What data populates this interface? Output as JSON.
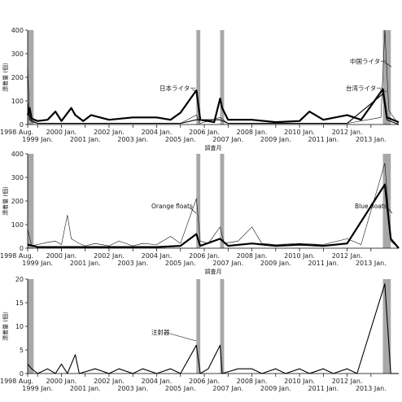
{
  "chart_data": [
    {
      "type": "line",
      "ylabel": "漂着量 (個)",
      "xlabel": "調査月",
      "ylim": [
        0,
        400
      ],
      "yticks": [
        0,
        100,
        200,
        300,
        400
      ],
      "x_start": "1998-08",
      "x_end": "2014-03",
      "xticks_top": [
        "1998 Aug.",
        "2000 Jan.",
        "2002 Jan.",
        "2004 Jan.",
        "2006 Jan.",
        "2008 Jan.",
        "2010 Jan.",
        "2012 Jan."
      ],
      "xticks_bottom": [
        "1999 Jan.",
        "2001 Jan.",
        "2003 Jan.",
        "2005 Jan.",
        "2007 Jan.",
        "2009 Jan.",
        "2011 Jan.",
        "2013 Jan."
      ],
      "shaded_periods": [
        [
          "1998-08",
          "1998-11"
        ],
        [
          "2005-09",
          "2005-11"
        ],
        [
          "2006-09",
          "2006-11"
        ],
        [
          "2013-07",
          "2013-11"
        ]
      ],
      "series": [
        {
          "name": "日本ライター",
          "style": "thick",
          "points": [
            [
              "1998-08",
              40
            ],
            [
              "1998-09",
              70
            ],
            [
              "1998-10",
              25
            ],
            [
              "1999-01",
              15
            ],
            [
              "1999-06",
              20
            ],
            [
              "1999-10",
              55
            ],
            [
              "2000-01",
              15
            ],
            [
              "2000-06",
              70
            ],
            [
              "2000-08",
              40
            ],
            [
              "2000-12",
              15
            ],
            [
              "2001-04",
              40
            ],
            [
              "2002-01",
              20
            ],
            [
              "2003-01",
              30
            ],
            [
              "2004-01",
              30
            ],
            [
              "2004-08",
              20
            ],
            [
              "2005-01",
              50
            ],
            [
              "2005-09",
              145
            ],
            [
              "2005-11",
              20
            ],
            [
              "2006-06",
              10
            ],
            [
              "2006-09",
              110
            ],
            [
              "2006-10",
              70
            ],
            [
              "2007-01",
              20
            ],
            [
              "2008-01",
              20
            ],
            [
              "2009-01",
              10
            ],
            [
              "2010-01",
              15
            ],
            [
              "2010-06",
              55
            ],
            [
              "2011-01",
              20
            ],
            [
              "2012-01",
              40
            ],
            [
              "2012-08",
              20
            ],
            [
              "2013-07",
              150
            ],
            [
              "2013-09",
              30
            ],
            [
              "2014-03",
              10
            ]
          ]
        },
        {
          "name": "中国ライター",
          "style": "thin",
          "points": [
            [
              "1998-08",
              240
            ],
            [
              "1998-09",
              40
            ],
            [
              "1998-10",
              10
            ],
            [
              "1999-01",
              5
            ],
            [
              "2000-01",
              5
            ],
            [
              "2001-01",
              5
            ],
            [
              "2002-01",
              5
            ],
            [
              "2003-01",
              5
            ],
            [
              "2004-01",
              5
            ],
            [
              "2005-01",
              5
            ],
            [
              "2005-09",
              40
            ],
            [
              "2005-11",
              5
            ],
            [
              "2006-09",
              30
            ],
            [
              "2007-01",
              5
            ],
            [
              "2008-01",
              5
            ],
            [
              "2009-01",
              5
            ],
            [
              "2010-01",
              5
            ],
            [
              "2011-01",
              5
            ],
            [
              "2012-01",
              5
            ],
            [
              "2013-06",
              30
            ],
            [
              "2013-08",
              400
            ],
            [
              "2013-10",
              60
            ],
            [
              "2014-03",
              0
            ]
          ]
        },
        {
          "name": "台湾ライター",
          "style": "medium",
          "points": [
            [
              "1998-08",
              90
            ],
            [
              "1998-09",
              20
            ],
            [
              "1999-01",
              5
            ],
            [
              "2000-01",
              5
            ],
            [
              "2001-01",
              5
            ],
            [
              "2002-01",
              5
            ],
            [
              "2003-01",
              5
            ],
            [
              "2004-01",
              5
            ],
            [
              "2005-01",
              5
            ],
            [
              "2005-09",
              20
            ],
            [
              "2006-09",
              20
            ],
            [
              "2007-01",
              5
            ],
            [
              "2008-01",
              5
            ],
            [
              "2009-01",
              5
            ],
            [
              "2010-01",
              5
            ],
            [
              "2011-01",
              5
            ],
            [
              "2012-01",
              5
            ],
            [
              "2013-07",
              130
            ],
            [
              "2013-09",
              20
            ],
            [
              "2014-03",
              0
            ]
          ]
        }
      ],
      "annotations": [
        "日本ライター",
        "中国ライター",
        "台湾ライター"
      ]
    },
    {
      "type": "line",
      "ylabel": "漂着量 (個)",
      "xlabel": "調査月",
      "ylim": [
        0,
        400
      ],
      "yticks": [
        0,
        100,
        200,
        300,
        400
      ],
      "x_start": "1998-08",
      "x_end": "2014-03",
      "xticks_top": [
        "1998 Aug.",
        "2000 Jan.",
        "2002 Jan.",
        "2004 Jan.",
        "2006 Jan.",
        "2008 Jan.",
        "2010 Jan.",
        "2012 Jan."
      ],
      "xticks_bottom": [
        "1999 Jan.",
        "2001 Jan.",
        "2003 Jan.",
        "2005 Jan.",
        "2007 Jan.",
        "2009 Jan.",
        "2011 Jan.",
        "2013 Jan."
      ],
      "shaded_periods": [
        [
          "1998-08",
          "1998-11"
        ],
        [
          "2005-09",
          "2005-11"
        ],
        [
          "2006-09",
          "2006-11"
        ],
        [
          "2013-07",
          "2013-11"
        ]
      ],
      "series": [
        {
          "name": "Orange floats",
          "style": "thin",
          "points": [
            [
              "1998-08",
              80
            ],
            [
              "1998-10",
              10
            ],
            [
              "1999-06",
              25
            ],
            [
              "1999-10",
              30
            ],
            [
              "2000-01",
              15
            ],
            [
              "2000-04",
              140
            ],
            [
              "2000-06",
              40
            ],
            [
              "2000-10",
              20
            ],
            [
              "2001-01",
              10
            ],
            [
              "2001-06",
              20
            ],
            [
              "2002-01",
              10
            ],
            [
              "2002-06",
              30
            ],
            [
              "2003-01",
              10
            ],
            [
              "2003-06",
              20
            ],
            [
              "2004-01",
              15
            ],
            [
              "2004-08",
              50
            ],
            [
              "2005-01",
              20
            ],
            [
              "2005-09",
              210
            ],
            [
              "2005-11",
              30
            ],
            [
              "2006-03",
              20
            ],
            [
              "2006-09",
              90
            ],
            [
              "2006-11",
              20
            ],
            [
              "2007-06",
              30
            ],
            [
              "2008-01",
              90
            ],
            [
              "2008-06",
              20
            ],
            [
              "2009-01",
              15
            ],
            [
              "2010-01",
              20
            ],
            [
              "2011-01",
              15
            ],
            [
              "2012-01",
              40
            ],
            [
              "2012-08",
              15
            ],
            [
              "2013-08",
              360
            ],
            [
              "2013-11",
              30
            ],
            [
              "2014-03",
              0
            ]
          ]
        },
        {
          "name": "Blue floats",
          "style": "thick",
          "points": [
            [
              "1998-08",
              15
            ],
            [
              "1999-01",
              5
            ],
            [
              "2000-01",
              5
            ],
            [
              "2001-01",
              5
            ],
            [
              "2002-01",
              5
            ],
            [
              "2003-01",
              5
            ],
            [
              "2004-01",
              5
            ],
            [
              "2005-01",
              10
            ],
            [
              "2005-09",
              60
            ],
            [
              "2005-11",
              10
            ],
            [
              "2006-09",
              40
            ],
            [
              "2007-01",
              10
            ],
            [
              "2008-01",
              20
            ],
            [
              "2009-01",
              10
            ],
            [
              "2010-01",
              15
            ],
            [
              "2011-01",
              10
            ],
            [
              "2012-01",
              20
            ],
            [
              "2013-08",
              270
            ],
            [
              "2013-11",
              40
            ],
            [
              "2014-03",
              0
            ]
          ]
        }
      ],
      "annotations": [
        "Orange floats",
        "Blue floats"
      ]
    },
    {
      "type": "line",
      "ylabel": "漂着量 (個)",
      "xlabel": "",
      "ylim": [
        0,
        20
      ],
      "yticks": [
        0,
        5,
        10,
        15,
        20
      ],
      "x_start": "1998-08",
      "x_end": "2014-03",
      "xticks_top": [
        "1998 Aug.",
        "2000 Jan.",
        "2002 Jan.",
        "2004 Jan.",
        "2006 Jan.",
        "2008 Jan.",
        "2010 Jan.",
        "2012 Jan."
      ],
      "xticks_bottom": [
        "1999 Jan.",
        "2001 Jan.",
        "2003 Jan.",
        "2005 Jan.",
        "2007 Jan.",
        "2009 Jan.",
        "2011 Jan.",
        "2013 Jan."
      ],
      "shaded_periods": [
        [
          "1998-08",
          "1998-11"
        ],
        [
          "2005-09",
          "2005-11"
        ],
        [
          "2006-09",
          "2006-11"
        ],
        [
          "2013-07",
          "2013-11"
        ]
      ],
      "series": [
        {
          "name": "注射器",
          "style": "medium",
          "points": [
            [
              "1998-08",
              2
            ],
            [
              "1998-10",
              1
            ],
            [
              "1999-01",
              0
            ],
            [
              "1999-06",
              1
            ],
            [
              "1999-10",
              0
            ],
            [
              "2000-01",
              2
            ],
            [
              "2000-04",
              0
            ],
            [
              "2000-08",
              4
            ],
            [
              "2000-10",
              0
            ],
            [
              "2001-06",
              1
            ],
            [
              "2002-01",
              0
            ],
            [
              "2002-06",
              1
            ],
            [
              "2003-01",
              0
            ],
            [
              "2003-06",
              1
            ],
            [
              "2004-01",
              0
            ],
            [
              "2004-08",
              1
            ],
            [
              "2005-01",
              0
            ],
            [
              "2005-09",
              6
            ],
            [
              "2005-11",
              0
            ],
            [
              "2006-03",
              1
            ],
            [
              "2006-09",
              6
            ],
            [
              "2006-10",
              0
            ],
            [
              "2007-06",
              1
            ],
            [
              "2008-01",
              1
            ],
            [
              "2008-06",
              0
            ],
            [
              "2009-01",
              1
            ],
            [
              "2009-06",
              0
            ],
            [
              "2010-01",
              1
            ],
            [
              "2010-06",
              0
            ],
            [
              "2011-01",
              1
            ],
            [
              "2011-06",
              0
            ],
            [
              "2012-01",
              1
            ],
            [
              "2012-06",
              0
            ],
            [
              "2013-08",
              19
            ],
            [
              "2013-11",
              0
            ],
            [
              "2014-03",
              0
            ]
          ]
        }
      ],
      "annotations": [
        "注射器"
      ]
    }
  ]
}
